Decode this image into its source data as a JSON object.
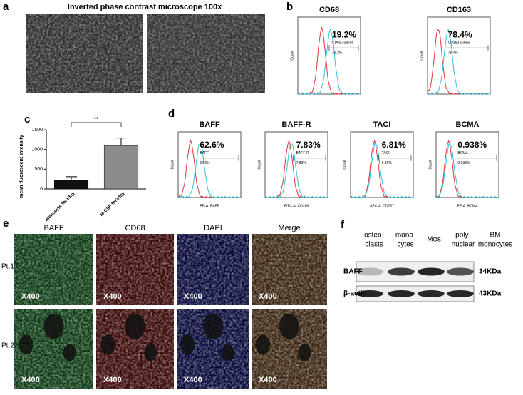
{
  "panels": {
    "a": {
      "label": "a",
      "title": "Inverted phase contrast microscope 100x"
    },
    "b": {
      "label": "b",
      "plots": [
        {
          "title": "CD68",
          "percent": "19.2%",
          "gate_label": "CD68 subset",
          "gate_value": "19.2%",
          "y_label": "Count"
        },
        {
          "title": "CD163",
          "percent": "78.4%",
          "gate_label": "CD163 subset",
          "gate_value": "78.4%",
          "y_label": "Count"
        }
      ]
    },
    "d": {
      "label": "d",
      "plots": [
        {
          "title": "BAFF",
          "percent": "62.6%",
          "gate_label": "BAFF",
          "gate_value": "62.6%",
          "y_label": "Count",
          "x_label": "PE-A: BAFF"
        },
        {
          "title": "BAFF-R",
          "percent": "7.83%",
          "gate_label": "BAFF-R",
          "gate_value": "7.83%",
          "y_label": "Count",
          "x_label": "FITC-A: CD268"
        },
        {
          "title": "TACI",
          "percent": "6.81%",
          "gate_label": "TACI",
          "gate_value": "6.81%",
          "y_label": "Count",
          "x_label": "APC-A: CD267"
        },
        {
          "title": "BCMA",
          "percent": "0.938%",
          "gate_label": "BCMA",
          "gate_value": "0.938%",
          "y_label": "Count",
          "x_label": "PE-A: BCMA"
        }
      ]
    },
    "e": {
      "label": "e",
      "columns": [
        "BAFF",
        "CD68",
        "DAPI",
        "Merge"
      ],
      "rows": [
        "Pt.1",
        "Pt.2"
      ],
      "magnification": "X400"
    },
    "f": {
      "label": "f",
      "lanes": [
        [
          "osteo-",
          "clasts"
        ],
        [
          "mono-",
          "cytes"
        ],
        [
          "Mφs"
        ],
        [
          "poly-",
          "nuclear"
        ],
        [
          "BM",
          "monocytes"
        ]
      ],
      "blots": [
        {
          "name": "BAFF",
          "size": "34KDa"
        },
        {
          "name": "β-actin",
          "size": "43KDa"
        }
      ]
    }
  },
  "chart_data": {
    "type": "bar",
    "label": "c",
    "y_label": "mean fluorescent intensity",
    "categories": [
      "monocyte for1day",
      "M-CSF for1day"
    ],
    "values": [
      230,
      1100
    ],
    "errors": [
      80,
      190
    ],
    "colors": [
      "#111111",
      "#8c8c8c"
    ],
    "ylim": [
      0,
      1500
    ],
    "yticks": [
      0,
      500,
      1000,
      1500
    ],
    "annotation": "**"
  }
}
